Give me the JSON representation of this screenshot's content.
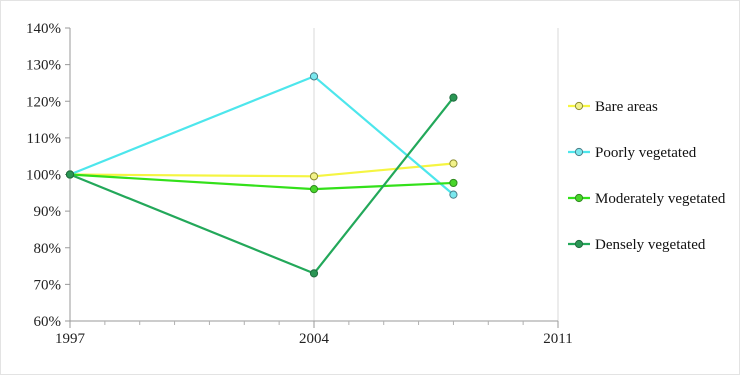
{
  "chart_data": {
    "type": "line",
    "title": "",
    "xlabel": "",
    "ylabel": "",
    "x_ticks": [
      "1997",
      "2004",
      "2011"
    ],
    "x_range": [
      1997,
      2011
    ],
    "y_ticks": [
      "60%",
      "70%",
      "80%",
      "90%",
      "100%",
      "110%",
      "120%",
      "130%",
      "140%"
    ],
    "y_range": [
      60,
      140
    ],
    "y_unit": "%",
    "grid": "vertical-major",
    "legend_position": "right",
    "series": [
      {
        "name": "Bare areas",
        "color": "#f5f542",
        "marker_fill": "#f2f28a",
        "marker_stroke": "#8c8c30",
        "points": [
          {
            "x": 1997,
            "y": 100
          },
          {
            "x": 2004,
            "y": 99.5
          },
          {
            "x": 2008,
            "y": 103
          }
        ]
      },
      {
        "name": "Poorly vegetated",
        "color": "#4de6ec",
        "marker_fill": "#7ae8ee",
        "marker_stroke": "#4a7e88",
        "points": [
          {
            "x": 1997,
            "y": 100
          },
          {
            "x": 2004,
            "y": 126.8
          },
          {
            "x": 2008,
            "y": 94.5
          }
        ]
      },
      {
        "name": "Moderately vegetated",
        "color": "#33e01a",
        "marker_fill": "#48d52a",
        "marker_stroke": "#2e8a1e",
        "points": [
          {
            "x": 1997,
            "y": 100
          },
          {
            "x": 2004,
            "y": 96
          },
          {
            "x": 2008,
            "y": 97.7
          }
        ]
      },
      {
        "name": "Densely vegetated",
        "color": "#23a85a",
        "marker_fill": "#2a9654",
        "marker_stroke": "#1f6b3e",
        "points": [
          {
            "x": 1997,
            "y": 100
          },
          {
            "x": 2004,
            "y": 73
          },
          {
            "x": 2008,
            "y": 121
          }
        ]
      }
    ]
  }
}
